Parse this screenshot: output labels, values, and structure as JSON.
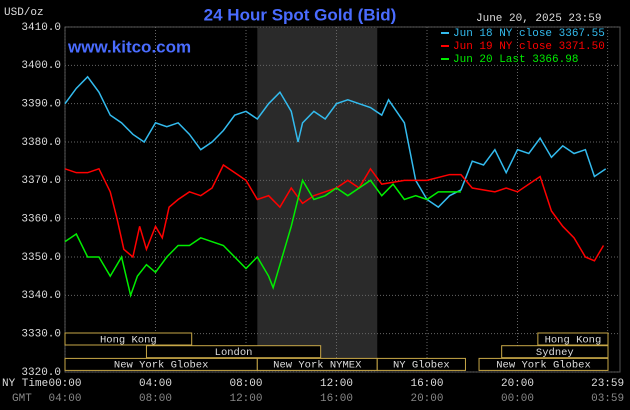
{
  "chart_data": {
    "type": "line",
    "title": "24 Hour Spot Gold (Bid)",
    "unit_label": "USD/oz",
    "timestamp": "June 20, 2025 23:59",
    "source": "www.kitco.com",
    "row_labels": [
      "NY Time",
      "GMT"
    ],
    "xlim": [
      0,
      24
    ],
    "ylim": [
      3320,
      3410
    ],
    "xticks": [
      {
        "value": 0,
        "label": "00:00"
      },
      {
        "value": 4,
        "label": "04:00"
      },
      {
        "value": 8,
        "label": "08:00"
      },
      {
        "value": 12,
        "label": "12:00"
      },
      {
        "value": 16,
        "label": "16:00"
      },
      {
        "value": 20,
        "label": "20:00"
      },
      {
        "value": 23.983,
        "label": "23:59"
      }
    ],
    "gmt_tick_labels": [
      "04:00",
      "08:00",
      "12:00",
      "16:00",
      "20:00",
      "00:00",
      "03:59"
    ],
    "yticks": [
      {
        "value": 3320,
        "label": "3320.0"
      },
      {
        "value": 3330,
        "label": "3330.0"
      },
      {
        "value": 3340,
        "label": "3340.0"
      },
      {
        "value": 3350,
        "label": "3350.0"
      },
      {
        "value": 3360,
        "label": "3360.0"
      },
      {
        "value": 3370,
        "label": "3370.0"
      },
      {
        "value": 3380,
        "label": "3380.0"
      },
      {
        "value": 3390,
        "label": "3390.0"
      },
      {
        "value": 3400,
        "label": "3400.0"
      },
      {
        "value": 3410,
        "label": "3410.0"
      }
    ],
    "grid": true,
    "highlight": [
      8.5,
      13.8
    ],
    "sessions": [
      [
        {
          "label": "Hong Kong",
          "start": 0,
          "end": 5.6
        },
        {
          "label": "Hong Kong",
          "start": 20.9,
          "end": 24
        }
      ],
      [
        {
          "label": "London",
          "start": 3.6,
          "end": 11.3
        },
        {
          "label": "Sydney",
          "start": 19.3,
          "end": 24
        }
      ],
      [
        {
          "label": "New York Globex",
          "start": 0,
          "end": 8.5
        },
        {
          "label": "New York NYMEX",
          "start": 8.5,
          "end": 13.8
        },
        {
          "label": "NY Globex",
          "start": 13.8,
          "end": 17.7
        },
        {
          "label": "New York Globex",
          "start": 18.3,
          "end": 24
        }
      ]
    ],
    "series": [
      {
        "name": "Jun 18 NY close 3367.55",
        "color": "#33bbee",
        "x": [
          0,
          0.5,
          1,
          1.5,
          2,
          2.5,
          3,
          3.5,
          4,
          4.5,
          5,
          5.5,
          6,
          6.5,
          7,
          7.5,
          8,
          8.5,
          9,
          9.5,
          10,
          10.3,
          10.5,
          11,
          11.5,
          12,
          12.5,
          13,
          13.5,
          14,
          14.3,
          15,
          15.5,
          16,
          16.5,
          17,
          17.5,
          18,
          18.5,
          19,
          19.5,
          20,
          20.5,
          21,
          21.5,
          22,
          22.5,
          23,
          23.4,
          23.9
        ],
        "values": [
          3390,
          3394,
          3397,
          3393,
          3387,
          3385,
          3382,
          3380,
          3385,
          3384,
          3385,
          3382,
          3378,
          3380,
          3383,
          3387,
          3388,
          3386,
          3390,
          3393,
          3388,
          3380,
          3385,
          3388,
          3386,
          3390,
          3391,
          3390,
          3389,
          3387,
          3391,
          3385,
          3370,
          3365,
          3363,
          3366,
          3367.5,
          3375,
          3374,
          3378,
          3372,
          3378,
          3377,
          3381,
          3376,
          3379,
          3377,
          3378,
          3371,
          3373
        ]
      },
      {
        "name": "Jun 19 NY close 3371.50",
        "color": "#ff0000",
        "x": [
          0,
          0.5,
          1,
          1.5,
          2,
          2.3,
          2.6,
          3,
          3.3,
          3.6,
          4,
          4.3,
          4.6,
          5,
          5.5,
          6,
          6.5,
          7,
          7.5,
          8,
          8.5,
          9,
          9.5,
          10,
          10.5,
          11,
          12,
          12.5,
          13,
          13.5,
          14,
          15,
          16,
          17,
          17.5,
          18,
          19,
          19.5,
          20,
          21,
          21.5,
          22,
          22.5,
          23,
          23.4,
          23.8
        ],
        "values": [
          3373,
          3372,
          3372,
          3373,
          3367,
          3360,
          3352,
          3350,
          3358,
          3352,
          3358,
          3355,
          3363,
          3365,
          3367,
          3366,
          3368,
          3374,
          3372,
          3370,
          3365,
          3366,
          3363,
          3368,
          3364,
          3366,
          3368,
          3370,
          3368,
          3373,
          3369,
          3370,
          3370,
          3371.5,
          3371.5,
          3368,
          3367,
          3368,
          3367,
          3371,
          3362,
          3358,
          3355,
          3350,
          3349,
          3353
        ]
      },
      {
        "name": "Jun 20 Last 3366.98",
        "color": "#00ee00",
        "x": [
          0,
          0.5,
          1,
          1.5,
          2,
          2.5,
          2.7,
          2.9,
          3.2,
          3.6,
          4,
          4.5,
          5,
          5.5,
          6,
          6.5,
          7,
          7.5,
          8,
          8.5,
          9,
          9.2,
          9.5,
          10,
          10.5,
          11,
          11.5,
          12,
          12.5,
          13,
          13.5,
          14,
          14.5,
          15,
          15.5,
          16,
          16.5,
          17,
          17.5
        ],
        "values": [
          3354,
          3356,
          3350,
          3350,
          3345,
          3350,
          3345,
          3340,
          3345,
          3348,
          3346,
          3350,
          3353,
          3353,
          3355,
          3354,
          3353,
          3350,
          3347,
          3350,
          3345,
          3342,
          3348,
          3358,
          3370,
          3365,
          3366,
          3368,
          3366,
          3368,
          3370,
          3366,
          3369,
          3365,
          3366,
          3365,
          3367,
          3367,
          3366.98
        ]
      }
    ]
  }
}
